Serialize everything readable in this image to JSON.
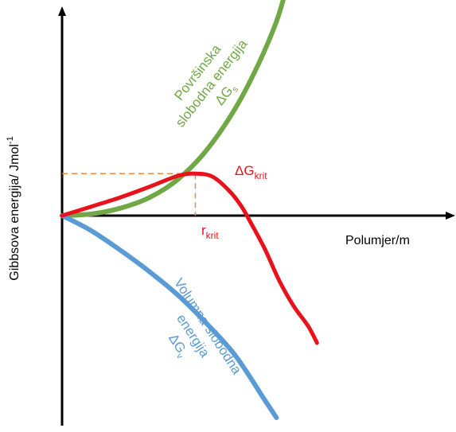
{
  "chart_data": {
    "type": "line",
    "title": "",
    "xlabel": "Polumjer/m",
    "ylabel": {
      "main": "Gibbsova energija/ Jmol",
      "sup": "-1"
    },
    "xlim": [
      0,
      10
    ],
    "ylim": [
      -5.6,
      6.0
    ],
    "grid": false,
    "legend": "none",
    "colors": {
      "surface": "#70a845",
      "volume": "#5b9bd5",
      "total": "#e8121c",
      "guide": "#f08a3c",
      "axis": "#000000"
    },
    "series": [
      {
        "key": "surface",
        "x": [
          0,
          1,
          2,
          3,
          4,
          5,
          6,
          6.8,
          7.4,
          7.7
        ],
        "y": [
          0,
          0.05,
          0.23,
          0.56,
          1.14,
          2.07,
          3.4,
          4.8,
          6.1,
          7.0
        ]
      },
      {
        "key": "volume",
        "x": [
          0,
          1,
          2,
          3,
          4,
          5,
          6,
          7,
          7.4
        ],
        "y": [
          0,
          -0.47,
          -1.08,
          -1.75,
          -2.5,
          -3.4,
          -4.42,
          -5.8,
          -6.35
        ]
      },
      {
        "key": "total",
        "x": [
          0,
          1,
          2,
          3,
          4,
          4.6,
          5.2,
          5.8,
          6.2,
          6.5,
          7.0,
          7.5,
          8.0,
          8.5,
          8.8
        ],
        "y": [
          0,
          0.28,
          0.57,
          0.9,
          1.25,
          1.32,
          1.22,
          0.75,
          0.28,
          -0.2,
          -1.05,
          -2.05,
          -2.85,
          -3.48,
          -4.0
        ]
      }
    ],
    "annotations": {
      "surface_label": [
        "Površinska",
        "slobodna energija"
      ],
      "surface_symbol": {
        "base": "ΔG",
        "sub": "s"
      },
      "volume_label": [
        "Volumna slobodna",
        "energija"
      ],
      "volume_symbol": {
        "base": "ΔG",
        "sub": "v"
      },
      "critical_energy": {
        "base": "ΔG",
        "sub": "krit",
        "x": 4.6,
        "y": 1.32
      },
      "critical_radius": {
        "base": "r",
        "sub": "krit"
      }
    }
  }
}
